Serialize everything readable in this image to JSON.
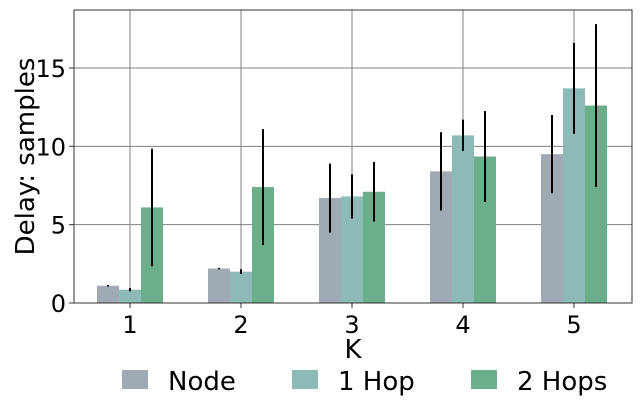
{
  "chart_data": {
    "type": "bar",
    "xlabel": "K",
    "ylabel": "Delay: samples",
    "categories": [
      "1",
      "2",
      "3",
      "4",
      "5"
    ],
    "ylim": [
      0,
      18.7
    ],
    "yticks": [
      "0",
      "5",
      "10",
      "15"
    ],
    "grid": true,
    "legend_position": "bottom",
    "series": [
      {
        "name": "Node",
        "color": "#A0AAB4",
        "values": [
          1.1,
          2.2,
          6.7,
          8.4,
          9.5
        ],
        "errors": [
          0.0,
          0.0,
          2.2,
          2.5,
          2.5
        ]
      },
      {
        "name": "1 Hop",
        "color": "#8DBAB7",
        "values": [
          0.85,
          2.0,
          6.8,
          10.7,
          13.7
        ],
        "errors": [
          0.1,
          0.15,
          1.4,
          1.0,
          2.9
        ]
      },
      {
        "name": "2 Hops",
        "color": "#6AAF8A",
        "values": [
          6.1,
          7.4,
          7.1,
          9.35,
          12.6
        ],
        "errors": [
          3.75,
          3.7,
          1.9,
          2.9,
          5.2
        ]
      }
    ]
  }
}
